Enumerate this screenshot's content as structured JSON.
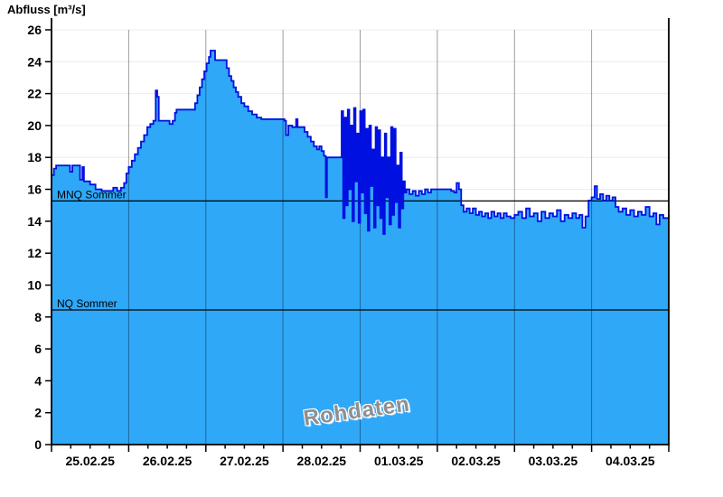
{
  "chart_data": {
    "type": "area",
    "title": "Abfluss [m³/s]",
    "ylabel": "Abfluss [m³/s]",
    "watermark": "Rohdaten",
    "x_labels": [
      "25.02.25",
      "26.02.25",
      "27.02.25",
      "28.02.25",
      "01.03.25",
      "02.03.25",
      "03.03.25",
      "04.03.25"
    ],
    "x_unit": "days since 25.02.25 00:00",
    "x_range_days": [
      0,
      8
    ],
    "x_minor_per_day": 4,
    "ylim": [
      0,
      26
    ],
    "y_tick_step": 2,
    "grid": true,
    "legend": "none",
    "reference_lines": [
      {
        "label": "MNQ Sommer",
        "value": 15.27
      },
      {
        "label": "NQ Sommer",
        "value": 8.44
      }
    ],
    "series": [
      {
        "name": "Abfluss",
        "unit": "m³/s",
        "step": true,
        "points": [
          [
            0.0,
            16.9
          ],
          [
            0.03,
            17.3
          ],
          [
            0.06,
            17.5
          ],
          [
            0.22,
            17.5
          ],
          [
            0.24,
            17.1
          ],
          [
            0.27,
            17.5
          ],
          [
            0.34,
            17.5
          ],
          [
            0.37,
            16.6
          ],
          [
            0.4,
            17.4
          ],
          [
            0.42,
            16.5
          ],
          [
            0.5,
            16.3
          ],
          [
            0.57,
            16.0
          ],
          [
            0.65,
            15.9
          ],
          [
            0.74,
            15.9
          ],
          [
            0.8,
            16.1
          ],
          [
            0.85,
            15.9
          ],
          [
            0.9,
            16.1
          ],
          [
            0.94,
            16.4
          ],
          [
            0.97,
            17.0
          ],
          [
            1.0,
            17.4
          ],
          [
            1.04,
            17.8
          ],
          [
            1.08,
            18.2
          ],
          [
            1.12,
            18.6
          ],
          [
            1.16,
            19.0
          ],
          [
            1.2,
            19.4
          ],
          [
            1.24,
            19.9
          ],
          [
            1.28,
            20.1
          ],
          [
            1.32,
            20.3
          ],
          [
            1.35,
            22.2
          ],
          [
            1.37,
            21.8
          ],
          [
            1.39,
            20.3
          ],
          [
            1.5,
            20.3
          ],
          [
            1.53,
            20.1
          ],
          [
            1.57,
            20.3
          ],
          [
            1.6,
            20.8
          ],
          [
            1.62,
            21.0
          ],
          [
            1.83,
            21.0
          ],
          [
            1.86,
            21.4
          ],
          [
            1.89,
            21.9
          ],
          [
            1.92,
            22.4
          ],
          [
            1.95,
            22.9
          ],
          [
            1.98,
            23.4
          ],
          [
            2.01,
            23.9
          ],
          [
            2.04,
            24.3
          ],
          [
            2.06,
            24.7
          ],
          [
            2.1,
            24.7
          ],
          [
            2.12,
            24.1
          ],
          [
            2.24,
            24.1
          ],
          [
            2.27,
            23.6
          ],
          [
            2.3,
            23.1
          ],
          [
            2.33,
            22.8
          ],
          [
            2.36,
            22.4
          ],
          [
            2.39,
            22.1
          ],
          [
            2.42,
            21.8
          ],
          [
            2.46,
            21.4
          ],
          [
            2.5,
            21.2
          ],
          [
            2.55,
            20.9
          ],
          [
            2.6,
            20.7
          ],
          [
            2.66,
            20.5
          ],
          [
            2.72,
            20.4
          ],
          [
            2.95,
            20.4
          ],
          [
            3.02,
            20.3
          ],
          [
            3.04,
            19.4
          ],
          [
            3.07,
            20.0
          ],
          [
            3.12,
            19.9
          ],
          [
            3.17,
            20.4
          ],
          [
            3.19,
            19.9
          ],
          [
            3.24,
            19.9
          ],
          [
            3.28,
            19.6
          ],
          [
            3.32,
            19.3
          ],
          [
            3.36,
            19.0
          ],
          [
            3.4,
            18.7
          ],
          [
            3.44,
            18.5
          ],
          [
            3.47,
            18.7
          ],
          [
            3.5,
            18.4
          ],
          [
            3.53,
            18.1
          ],
          [
            3.555,
            15.5
          ],
          [
            3.57,
            18.0
          ],
          [
            3.74,
            18.0
          ],
          [
            3.76,
            20.9
          ],
          [
            3.78,
            14.2
          ],
          [
            3.8,
            20.5
          ],
          [
            3.82,
            15.0
          ],
          [
            3.84,
            21.0
          ],
          [
            3.86,
            16.0
          ],
          [
            3.88,
            20.0
          ],
          [
            3.9,
            14.0
          ],
          [
            3.92,
            21.1
          ],
          [
            3.94,
            16.5
          ],
          [
            3.96,
            19.5
          ],
          [
            3.98,
            13.9
          ],
          [
            4.0,
            20.9
          ],
          [
            4.02,
            15.8
          ],
          [
            4.04,
            21.0
          ],
          [
            4.06,
            14.5
          ],
          [
            4.08,
            19.8
          ],
          [
            4.1,
            13.4
          ],
          [
            4.12,
            20.0
          ],
          [
            4.14,
            16.2
          ],
          [
            4.16,
            18.5
          ],
          [
            4.18,
            13.6
          ],
          [
            4.2,
            19.9
          ],
          [
            4.22,
            15.0
          ],
          [
            4.24,
            19.7
          ],
          [
            4.26,
            14.2
          ],
          [
            4.28,
            18.0
          ],
          [
            4.3,
            13.2
          ],
          [
            4.32,
            19.5
          ],
          [
            4.34,
            15.5
          ],
          [
            4.36,
            18.0
          ],
          [
            4.38,
            13.8
          ],
          [
            4.4,
            19.9
          ],
          [
            4.42,
            14.4
          ],
          [
            4.44,
            19.8
          ],
          [
            4.46,
            15.2
          ],
          [
            4.48,
            17.5
          ],
          [
            4.5,
            13.6
          ],
          [
            4.52,
            18.3
          ],
          [
            4.54,
            14.8
          ],
          [
            4.56,
            16.5
          ],
          [
            4.58,
            15.8
          ],
          [
            4.6,
            16.0
          ],
          [
            4.64,
            15.7
          ],
          [
            4.68,
            15.9
          ],
          [
            4.72,
            15.6
          ],
          [
            4.76,
            15.9
          ],
          [
            4.8,
            15.7
          ],
          [
            4.84,
            16.0
          ],
          [
            4.88,
            15.8
          ],
          [
            4.92,
            16.0
          ],
          [
            5.0,
            16.0
          ],
          [
            5.14,
            16.0
          ],
          [
            5.18,
            15.9
          ],
          [
            5.22,
            15.8
          ],
          [
            5.25,
            16.4
          ],
          [
            5.28,
            16.0
          ],
          [
            5.31,
            15.0
          ],
          [
            5.34,
            14.6
          ],
          [
            5.38,
            14.8
          ],
          [
            5.42,
            14.5
          ],
          [
            5.46,
            14.8
          ],
          [
            5.5,
            14.4
          ],
          [
            5.54,
            14.6
          ],
          [
            5.58,
            14.3
          ],
          [
            5.62,
            14.5
          ],
          [
            5.66,
            14.2
          ],
          [
            5.7,
            14.6
          ],
          [
            5.74,
            14.3
          ],
          [
            5.78,
            14.5
          ],
          [
            5.82,
            14.2
          ],
          [
            5.86,
            14.5
          ],
          [
            5.9,
            14.3
          ],
          [
            5.95,
            14.2
          ],
          [
            6.0,
            14.4
          ],
          [
            6.05,
            14.6
          ],
          [
            6.1,
            14.2
          ],
          [
            6.15,
            14.8
          ],
          [
            6.2,
            14.3
          ],
          [
            6.25,
            14.5
          ],
          [
            6.3,
            14.0
          ],
          [
            6.35,
            14.6
          ],
          [
            6.4,
            14.2
          ],
          [
            6.45,
            14.5
          ],
          [
            6.5,
            14.3
          ],
          [
            6.55,
            14.7
          ],
          [
            6.6,
            14.0
          ],
          [
            6.65,
            14.4
          ],
          [
            6.7,
            14.2
          ],
          [
            6.75,
            14.5
          ],
          [
            6.8,
            14.2
          ],
          [
            6.84,
            14.4
          ],
          [
            6.88,
            13.6
          ],
          [
            6.92,
            14.3
          ],
          [
            6.96,
            15.3
          ],
          [
            7.0,
            15.5
          ],
          [
            7.04,
            16.2
          ],
          [
            7.07,
            15.4
          ],
          [
            7.11,
            15.7
          ],
          [
            7.15,
            15.3
          ],
          [
            7.19,
            15.6
          ],
          [
            7.23,
            15.3
          ],
          [
            7.27,
            15.5
          ],
          [
            7.31,
            14.9
          ],
          [
            7.35,
            14.6
          ],
          [
            7.4,
            14.8
          ],
          [
            7.45,
            14.4
          ],
          [
            7.5,
            14.7
          ],
          [
            7.55,
            14.3
          ],
          [
            7.6,
            14.6
          ],
          [
            7.65,
            14.4
          ],
          [
            7.7,
            14.9
          ],
          [
            7.75,
            14.3
          ],
          [
            7.8,
            14.5
          ],
          [
            7.84,
            13.8
          ],
          [
            7.88,
            14.4
          ],
          [
            7.93,
            14.2
          ],
          [
            8.0,
            14.4
          ]
        ]
      }
    ]
  },
  "style": {
    "fill": "#2FA8F8",
    "line": "#0010E0",
    "hgrid": "#ECECEC",
    "vgrid": "rgba(0,0,0,0.38)",
    "axis": "#000000",
    "ref_line": "#000000",
    "tick_label_color": "#000000",
    "watermark_color": "#8F8F8F"
  }
}
